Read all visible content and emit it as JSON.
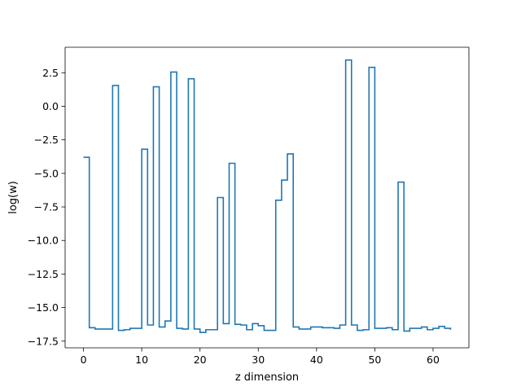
{
  "chart_data": {
    "type": "line",
    "drawstyle": "steps-post",
    "title": "",
    "xlabel": "z dimension",
    "ylabel": "log(w)",
    "xlim": [
      -3.15,
      66.15
    ],
    "ylim": [
      -18.0,
      4.4
    ],
    "xticks": [
      0,
      10,
      20,
      30,
      40,
      50,
      60
    ],
    "xtick_labels": [
      "0",
      "10",
      "20",
      "30",
      "40",
      "50",
      "60"
    ],
    "yticks": [
      2.5,
      0.0,
      -2.5,
      -5.0,
      -7.5,
      -10.0,
      -12.5,
      -15.0,
      -17.5
    ],
    "ytick_labels": [
      "2.5",
      "0.0",
      "−2.5",
      "−5.0",
      "−7.5",
      "−10.0",
      "−12.5",
      "−15.0",
      "−17.5"
    ],
    "grid": false,
    "line_color": "#1f77b4",
    "series": [
      {
        "x": [
          0,
          1,
          2,
          3,
          4,
          5,
          6,
          7,
          8,
          9,
          10,
          11,
          12,
          13,
          14,
          15,
          16,
          17,
          18,
          19,
          20,
          21,
          22,
          23,
          24,
          25,
          26,
          27,
          28,
          29,
          30,
          31,
          32,
          33,
          34,
          35,
          36,
          37,
          38,
          39,
          40,
          41,
          42,
          43,
          44,
          45,
          46,
          47,
          48,
          49,
          50,
          51,
          52,
          53,
          54,
          55,
          56,
          57,
          58,
          59,
          60,
          61,
          62,
          63
        ],
        "values": [
          -3.8,
          -16.5,
          -16.6,
          -16.6,
          -16.6,
          1.55,
          -16.7,
          -16.65,
          -16.55,
          -16.55,
          -3.2,
          -16.3,
          1.45,
          -16.45,
          -16.0,
          2.55,
          -16.55,
          -16.6,
          2.05,
          -16.6,
          -16.85,
          -16.65,
          -16.65,
          -6.8,
          -16.2,
          -4.25,
          -16.25,
          -16.3,
          -16.65,
          -16.2,
          -16.35,
          -16.7,
          -16.7,
          -7.0,
          -5.5,
          -3.55,
          -16.45,
          -16.6,
          -16.6,
          -16.45,
          -16.45,
          -16.5,
          -16.5,
          -16.55,
          -16.3,
          3.45,
          -16.3,
          -16.7,
          -16.65,
          2.9,
          -16.55,
          -16.55,
          -16.5,
          -16.65,
          -5.65,
          -16.75,
          -16.55,
          -16.55,
          -16.45,
          -16.65,
          -16.55,
          -16.4,
          -16.55,
          -16.65
        ]
      }
    ]
  }
}
